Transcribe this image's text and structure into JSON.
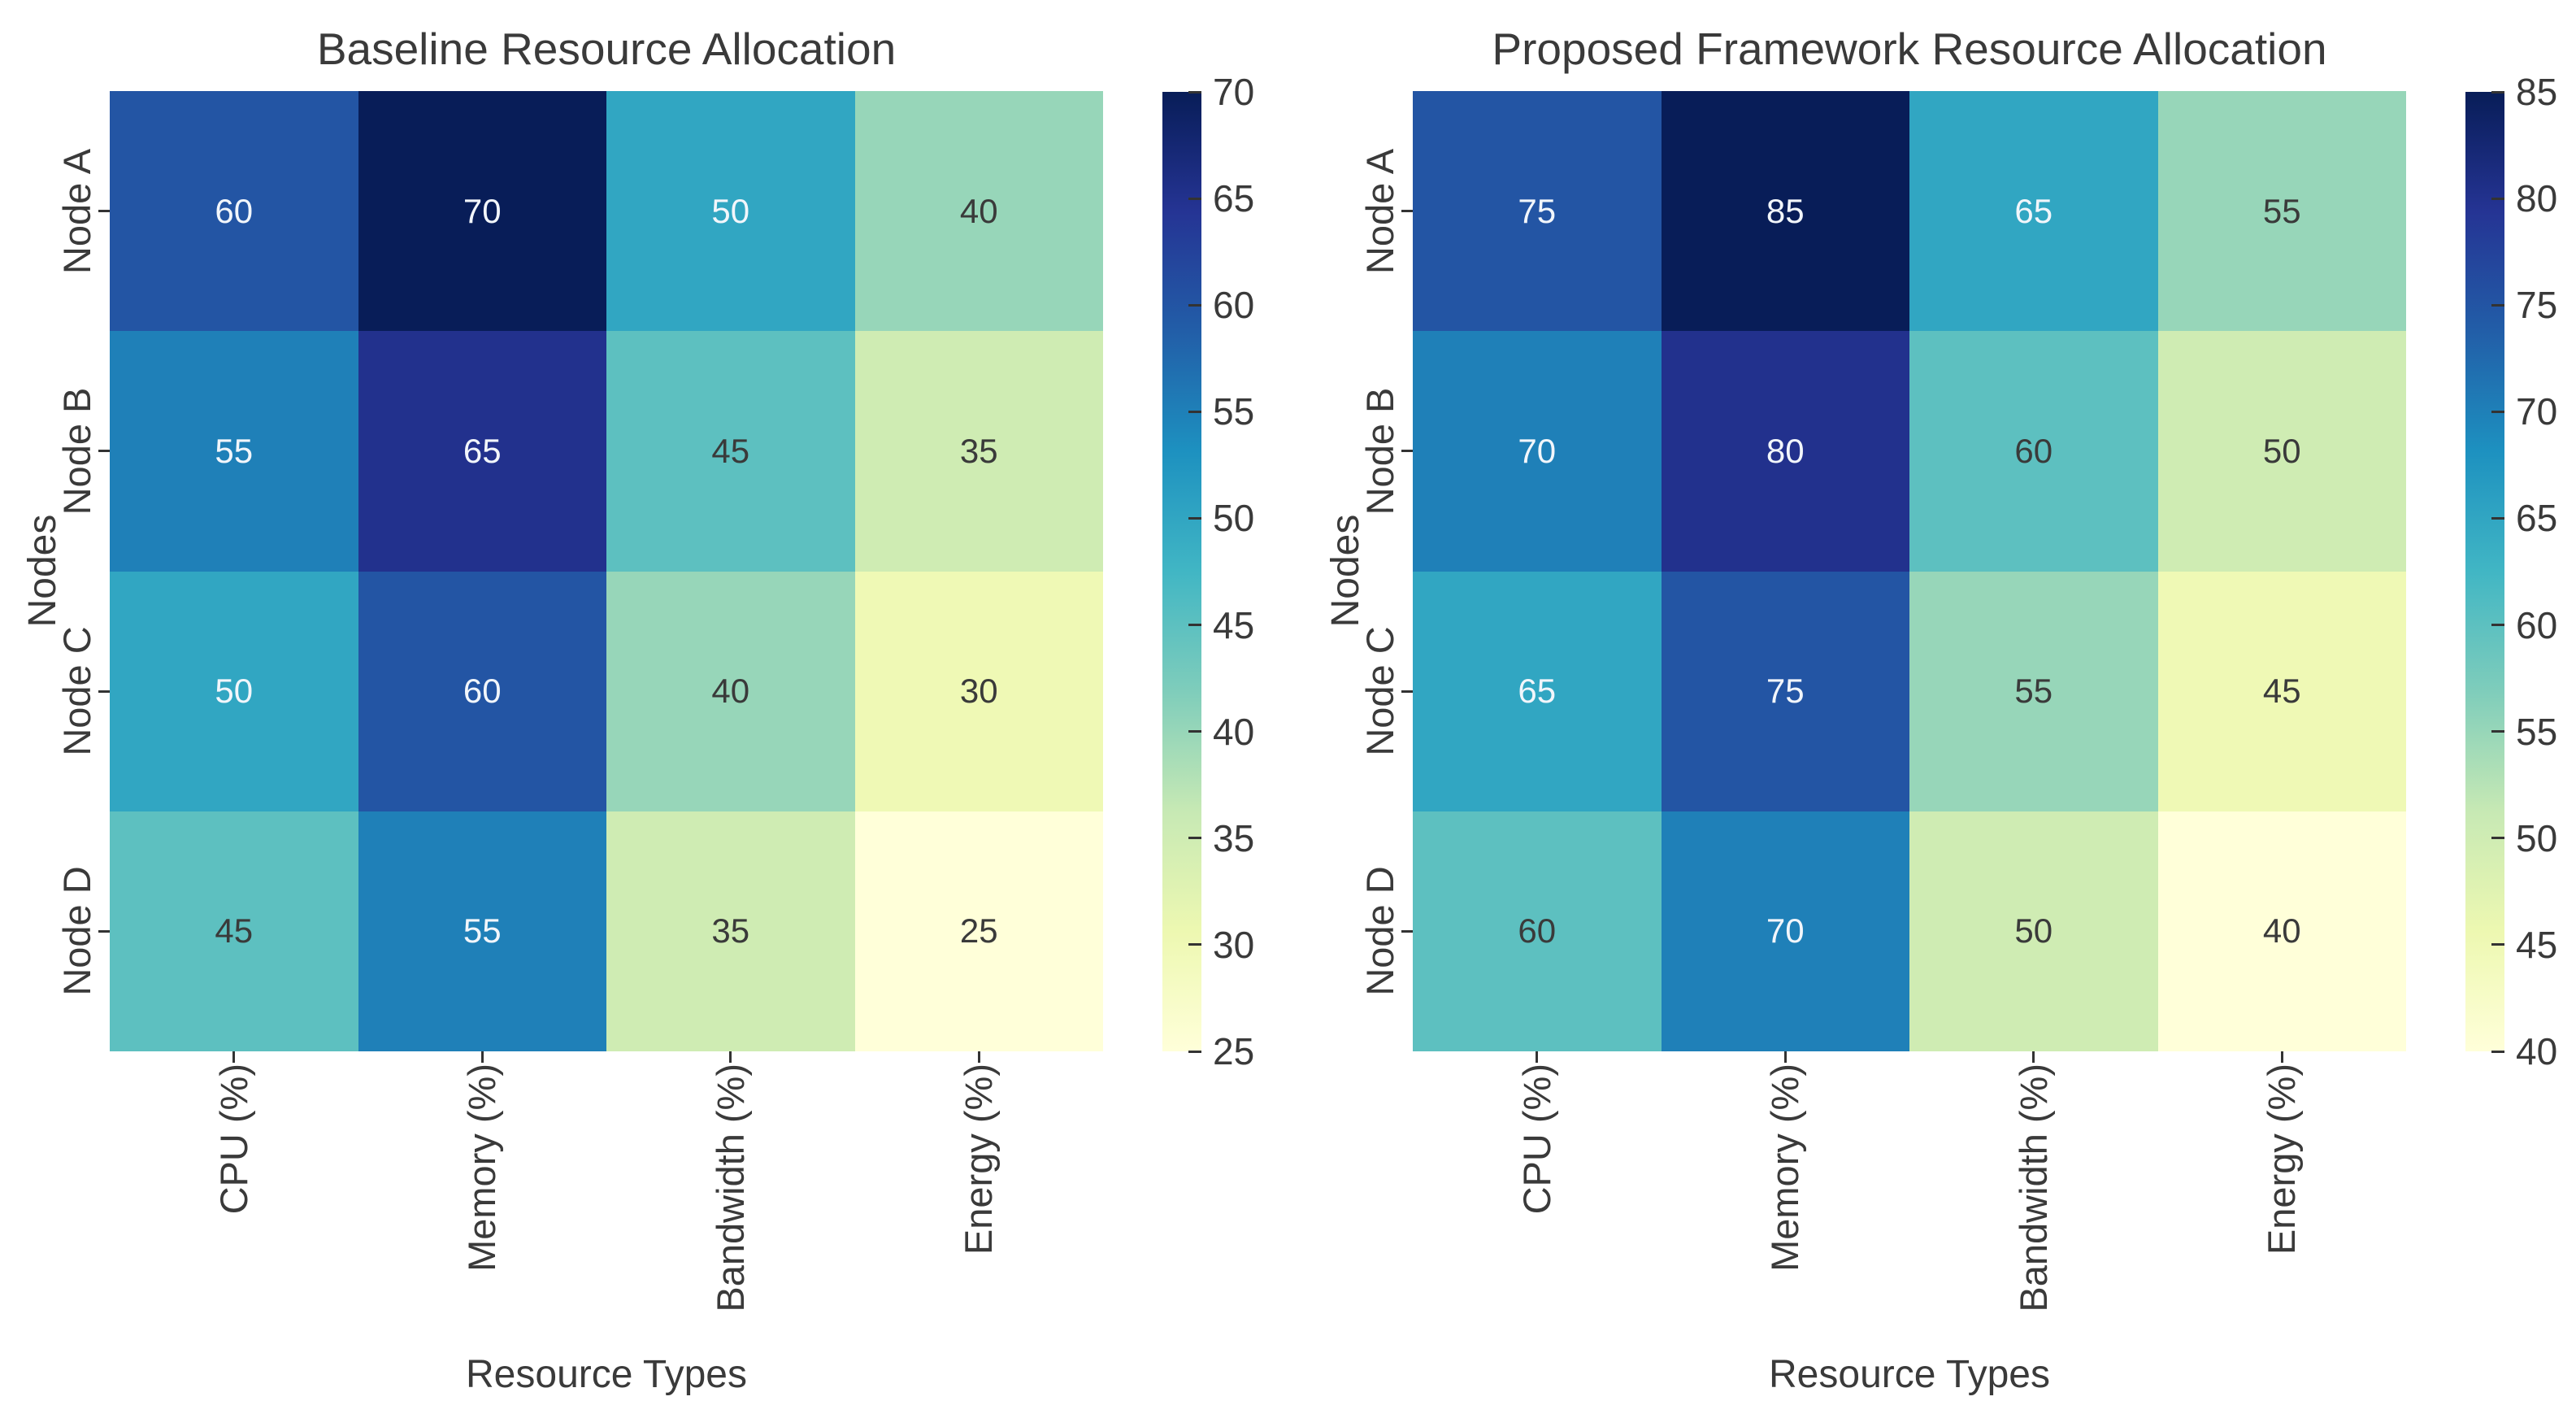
{
  "figure": {
    "background": "#ffffff",
    "text_color": "#3a3a3a"
  },
  "style": {
    "colormap_name": "YlGnBu",
    "colormap_stops": [
      "#ffffd9",
      "#edf8b1",
      "#c7e9b4",
      "#7fcdbb",
      "#41b6c4",
      "#1d91c0",
      "#225ea8",
      "#253494",
      "#081d58"
    ],
    "cell_text_light": "#f2f6fb",
    "cell_text_dark": "#3a3a3a",
    "tick_color": "#333333"
  },
  "chart_data": [
    {
      "type": "heatmap",
      "title": "Baseline Resource Allocation",
      "xlabel": "Resource Types",
      "ylabel": "Nodes",
      "rows": [
        "Node A",
        "Node B",
        "Node C",
        "Node D"
      ],
      "columns": [
        "CPU (%)",
        "Memory (%)",
        "Bandwidth (%)",
        "Energy (%)"
      ],
      "values": [
        [
          60,
          70,
          50,
          40
        ],
        [
          55,
          65,
          45,
          35
        ],
        [
          50,
          60,
          40,
          30
        ],
        [
          45,
          55,
          35,
          25
        ]
      ],
      "vmin": 25,
      "vmax": 70,
      "colorbar_ticks": [
        25,
        30,
        35,
        40,
        45,
        50,
        55,
        60,
        65,
        70
      ],
      "annotated": true,
      "colorbar_position": "right",
      "grid": false
    },
    {
      "type": "heatmap",
      "title": "Proposed Framework Resource Allocation",
      "xlabel": "Resource Types",
      "ylabel": "Nodes",
      "rows": [
        "Node A",
        "Node B",
        "Node C",
        "Node D"
      ],
      "columns": [
        "CPU (%)",
        "Memory (%)",
        "Bandwidth (%)",
        "Energy (%)"
      ],
      "values": [
        [
          75,
          85,
          65,
          55
        ],
        [
          70,
          80,
          60,
          50
        ],
        [
          65,
          75,
          55,
          45
        ],
        [
          60,
          70,
          50,
          40
        ]
      ],
      "vmin": 40,
      "vmax": 85,
      "colorbar_ticks": [
        40,
        45,
        50,
        55,
        60,
        65,
        70,
        75,
        80,
        85
      ],
      "annotated": true,
      "colorbar_position": "right",
      "grid": false
    }
  ]
}
